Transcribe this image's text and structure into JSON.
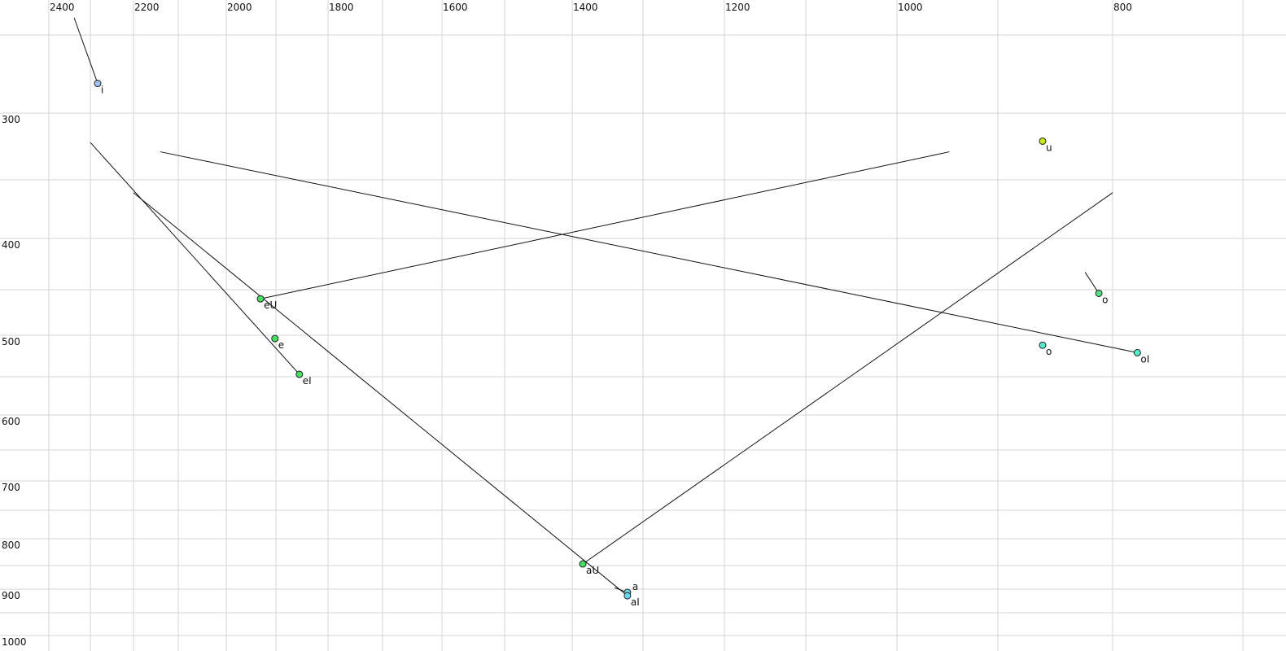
{
  "chart_data": {
    "type": "scatter",
    "title": "",
    "xlabel": "",
    "ylabel": "",
    "x_axis": {
      "reversed": true,
      "scale": "nonlinear",
      "range": [
        2400,
        700
      ],
      "tick_labels": [
        2400,
        2200,
        2000,
        1800,
        1600,
        1400,
        1200,
        1000,
        800
      ],
      "grid": [
        2400,
        2300,
        2200,
        2100,
        2000,
        1900,
        1800,
        1700,
        1600,
        1500,
        1400,
        1300,
        1200,
        1100,
        1000,
        900,
        800,
        700
      ],
      "position": "top"
    },
    "y_axis": {
      "reversed": false,
      "scale": "nonlinear",
      "range": [
        250,
        1000
      ],
      "tick_labels": [
        300,
        400,
        500,
        600,
        700,
        800,
        900,
        1000
      ],
      "grid": [
        250,
        300,
        350,
        400,
        450,
        500,
        550,
        600,
        650,
        700,
        750,
        800,
        850,
        900,
        950,
        1000
      ],
      "position": "left"
    },
    "grid": true,
    "points": [
      {
        "label": "i",
        "x": 2283,
        "y": 281,
        "color": "#9ec3f5",
        "label_color": "#111111",
        "start": [
          2339,
          239
        ]
      },
      {
        "label": "u",
        "x": 861,
        "y": 321,
        "color": "#c6ee10",
        "label_color": "#111111"
      },
      {
        "label": "eU",
        "x": 1931,
        "y": 460,
        "color": "#44e060",
        "label_color": "#111111",
        "start": [
          948,
          329
        ]
      },
      {
        "label": "e",
        "x": 1902,
        "y": 504,
        "color": "#44e060",
        "label_color": "#111111"
      },
      {
        "label": "eI",
        "x": 1855,
        "y": 547,
        "color": "#44e060",
        "label_color": "#111111",
        "start": [
          2300,
          322
        ]
      },
      {
        "label": "aU",
        "x": 1385,
        "y": 847,
        "color": "#44e060",
        "label_color": "#111111",
        "start": [
          800,
          361
        ]
      },
      {
        "label": "a",
        "x": 1322,
        "y": 907,
        "color": "#66d8f0",
        "label_color": "#111111",
        "start": [
          1340,
          897
        ]
      },
      {
        "label": "aI",
        "x": 1322,
        "y": 914,
        "color": "#66d8f0",
        "label_color": "#111111",
        "start": [
          2200,
          361
        ]
      },
      {
        "label": "o",
        "x": 812,
        "y": 454,
        "color": "#55e080",
        "label_color": "#777777",
        "start": [
          824,
          433
        ],
        "line_color": "#777777"
      },
      {
        "label": "o",
        "x": 861,
        "y": 512,
        "color": "#55eecc",
        "label_color": "#111111"
      },
      {
        "label": "oI",
        "x": 781,
        "y": 521,
        "color": "#55eecc",
        "label_color": "#111111",
        "start": [
          2140,
          329
        ]
      }
    ]
  }
}
